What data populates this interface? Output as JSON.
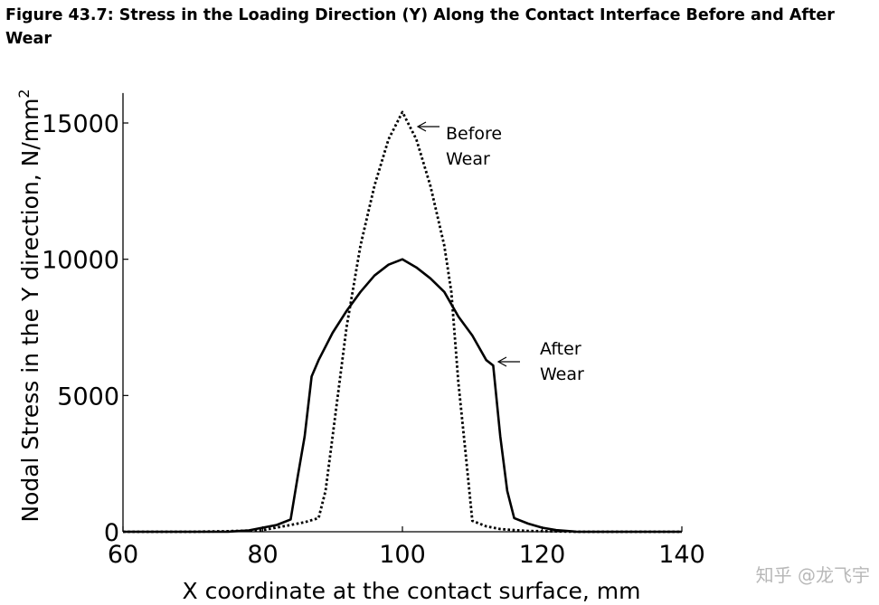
{
  "figure_title": "Figure 43.7: Stress in the Loading Direction (Y) Along the Contact Interface Before and After Wear",
  "watermark": "知乎 @龙飞宇",
  "chart_data": {
    "type": "line",
    "title": "",
    "xlabel": "X coordinate at the contact surface, mm",
    "ylabel_main": "Nodal Stress in the Y direction, N/mm",
    "ylabel_sup": "2",
    "xlim": [
      60,
      140
    ],
    "ylim": [
      0,
      15500
    ],
    "xticks": [
      60,
      80,
      100,
      120,
      140
    ],
    "xtick_labels": [
      "60",
      "80",
      "100",
      "120",
      "140"
    ],
    "yticks": [
      0,
      5000,
      10000,
      15000
    ],
    "ytick_labels": [
      "0",
      "5000",
      "10000",
      "15000"
    ],
    "grid": false,
    "series": [
      {
        "label_lines": [
          "Before",
          "Wear"
        ],
        "style": "dotted",
        "x": [
          60,
          70,
          75,
          80,
          84,
          86,
          88,
          89,
          90,
          92,
          94,
          96,
          98,
          100,
          102,
          104,
          106,
          107,
          108,
          109,
          110,
          112,
          114,
          116,
          118,
          120,
          125,
          140
        ],
        "y": [
          0,
          0,
          20,
          60,
          250,
          350,
          500,
          1500,
          3500,
          7500,
          10500,
          12700,
          14400,
          15400,
          14400,
          12700,
          10500,
          8800,
          5500,
          3000,
          400,
          200,
          100,
          60,
          30,
          20,
          0,
          0
        ]
      },
      {
        "label_lines": [
          "After",
          "Wear"
        ],
        "style": "solid",
        "x": [
          60,
          75,
          78,
          80,
          82,
          84,
          85,
          86,
          87,
          88,
          90,
          92,
          94,
          96,
          98,
          100,
          102,
          104,
          106,
          108,
          110,
          112,
          113,
          114,
          115,
          116,
          118,
          120,
          122,
          125,
          140
        ],
        "y": [
          0,
          0,
          50,
          150,
          250,
          450,
          2000,
          3500,
          5700,
          6300,
          7300,
          8100,
          8800,
          9400,
          9800,
          10000,
          9700,
          9300,
          8800,
          7900,
          7200,
          6300,
          6100,
          3500,
          1500,
          500,
          300,
          150,
          60,
          0,
          0
        ]
      }
    ],
    "line_color": "#000000"
  }
}
